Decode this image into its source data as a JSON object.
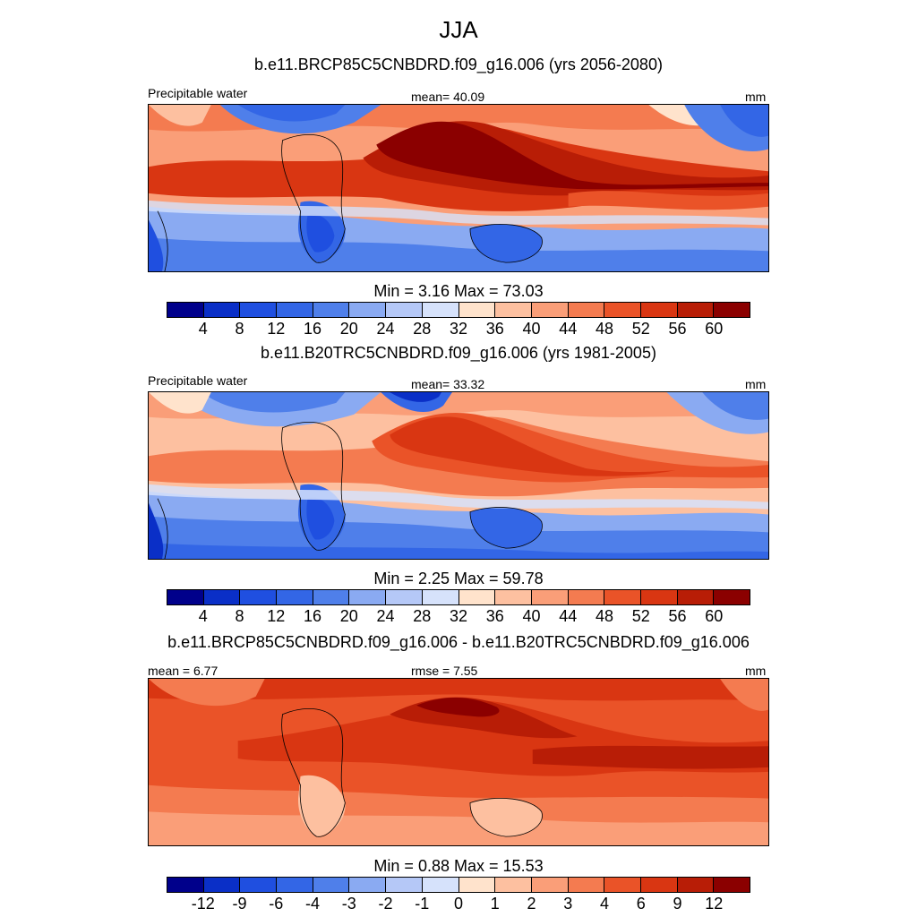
{
  "title": "JJA",
  "units_label": "mm",
  "panels": [
    {
      "id": "future",
      "title": "b.e11.BRCP85C5CNBDRD.f09_g16.006 (yrs 2056-2080)",
      "left_label": "Precipitable water",
      "center_label": "mean=  40.09",
      "right_label": "mm",
      "min_label": "Min =",
      "min_value": "3.16",
      "max_label": "Max =",
      "max_value": "73.03",
      "ticks": [
        "4",
        "8",
        "12",
        "16",
        "20",
        "24",
        "28",
        "32",
        "36",
        "40",
        "44",
        "48",
        "52",
        "56",
        "60"
      ]
    },
    {
      "id": "historical",
      "title": "b.e11.B20TRC5CNBDRD.f09_g16.006 (yrs 1981-2005)",
      "left_label": "Precipitable water",
      "center_label": "mean=  33.32",
      "right_label": "mm",
      "min_label": "Min =",
      "min_value": "2.25",
      "max_label": "Max =",
      "max_value": "59.78",
      "ticks": [
        "4",
        "8",
        "12",
        "16",
        "20",
        "24",
        "28",
        "32",
        "36",
        "40",
        "44",
        "48",
        "52",
        "56",
        "60"
      ]
    },
    {
      "id": "difference",
      "title": "b.e11.BRCP85C5CNBDRD.f09_g16.006 - b.e11.B20TRC5CNBDRD.f09_g16.006",
      "left_label": "mean =   6.77",
      "center_label": "rmse =   7.55",
      "right_label": "mm",
      "min_label": "Min =",
      "min_value": "0.88",
      "max_label": "Max =",
      "max_value": "15.53",
      "ticks": [
        "-12",
        "-9",
        "-6",
        "-4",
        "-3",
        "-2",
        "-1",
        "0",
        "1",
        "2",
        "3",
        "4",
        "6",
        "9",
        "12"
      ]
    }
  ],
  "colors": [
    "#00008b",
    "#0a2fc7",
    "#1f4fe0",
    "#3366e6",
    "#4f7fea",
    "#8aaaf2",
    "#b5c8f7",
    "#d6e2fb",
    "#ffe3cc",
    "#fdc0a0",
    "#fa9e78",
    "#f47b50",
    "#ea5328",
    "#d93612",
    "#b81d06",
    "#8b0000"
  ],
  "chart_data": [
    {
      "type": "heatmap",
      "title": "b.e11.BRCP85C5CNBDRD.f09_g16.006 (yrs 2056-2080)",
      "variable": "Precipitable water",
      "units": "mm",
      "mean": 40.09,
      "min": 3.16,
      "max": 73.03,
      "levels": [
        4,
        8,
        12,
        16,
        20,
        24,
        28,
        32,
        36,
        40,
        44,
        48,
        52,
        56,
        60
      ]
    },
    {
      "type": "heatmap",
      "title": "b.e11.B20TRC5CNBDRD.f09_g16.006 (yrs 1981-2005)",
      "variable": "Precipitable water",
      "units": "mm",
      "mean": 33.32,
      "min": 2.25,
      "max": 59.78,
      "levels": [
        4,
        8,
        12,
        16,
        20,
        24,
        28,
        32,
        36,
        40,
        44,
        48,
        52,
        56,
        60
      ]
    },
    {
      "type": "heatmap",
      "title": "b.e11.BRCP85C5CNBDRD.f09_g16.006 - b.e11.B20TRC5CNBDRD.f09_g16.006",
      "units": "mm",
      "mean": 6.77,
      "rmse": 7.55,
      "min": 0.88,
      "max": 15.53,
      "levels": [
        -12,
        -9,
        -6,
        -4,
        -3,
        -2,
        -1,
        0,
        1,
        2,
        3,
        4,
        6,
        9,
        12
      ]
    }
  ]
}
